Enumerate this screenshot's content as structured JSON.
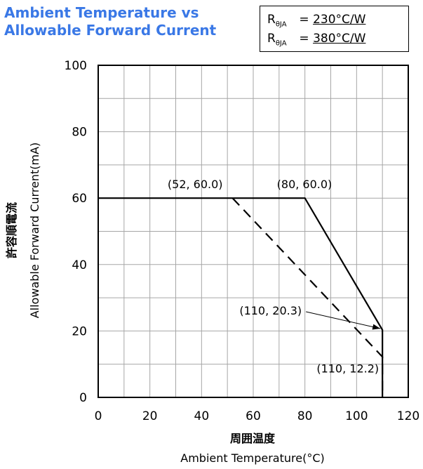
{
  "title_line1": "Ambient Temperature vs",
  "title_line2": "Allowable Forward Current",
  "legend": [
    {
      "symbol": "R",
      "sub": "θJA",
      "value": "230°C/W"
    },
    {
      "symbol": "R",
      "sub": "θJA",
      "value": "380°C/W"
    }
  ],
  "colors": {
    "title": "#3a78e6",
    "axis": "#000000",
    "grid": "#a6a6a6"
  },
  "chart_data": {
    "type": "line",
    "xlabel_jp": "周囲温度",
    "xlabel": "Ambient Temperature(°C)",
    "ylabel_jp": "許容順電流",
    "ylabel": "Allowable Forward Current(mA)",
    "xlim": [
      0,
      120
    ],
    "ylim": [
      0,
      100
    ],
    "xticks": [
      0,
      20,
      40,
      60,
      80,
      100,
      120
    ],
    "yticks": [
      0,
      20,
      40,
      60,
      80,
      100
    ],
    "grid": true,
    "series": [
      {
        "name": "230°C/W",
        "style": "solid",
        "x": [
          0,
          80,
          110,
          110
        ],
        "y": [
          60,
          60,
          20.3,
          0
        ]
      },
      {
        "name": "380°C/W",
        "style": "dashed",
        "x": [
          52,
          110,
          110
        ],
        "y": [
          60,
          12.2,
          0
        ]
      }
    ],
    "annotations": [
      {
        "text": "(52, 60.0)",
        "x": 52,
        "y": 60
      },
      {
        "text": "(80, 60.0)",
        "x": 80,
        "y": 60
      },
      {
        "text": "(110, 20.3)",
        "x": 110,
        "y": 20.3,
        "arrow": true
      },
      {
        "text": "(110, 12.2)",
        "x": 110,
        "y": 12.2
      }
    ]
  }
}
